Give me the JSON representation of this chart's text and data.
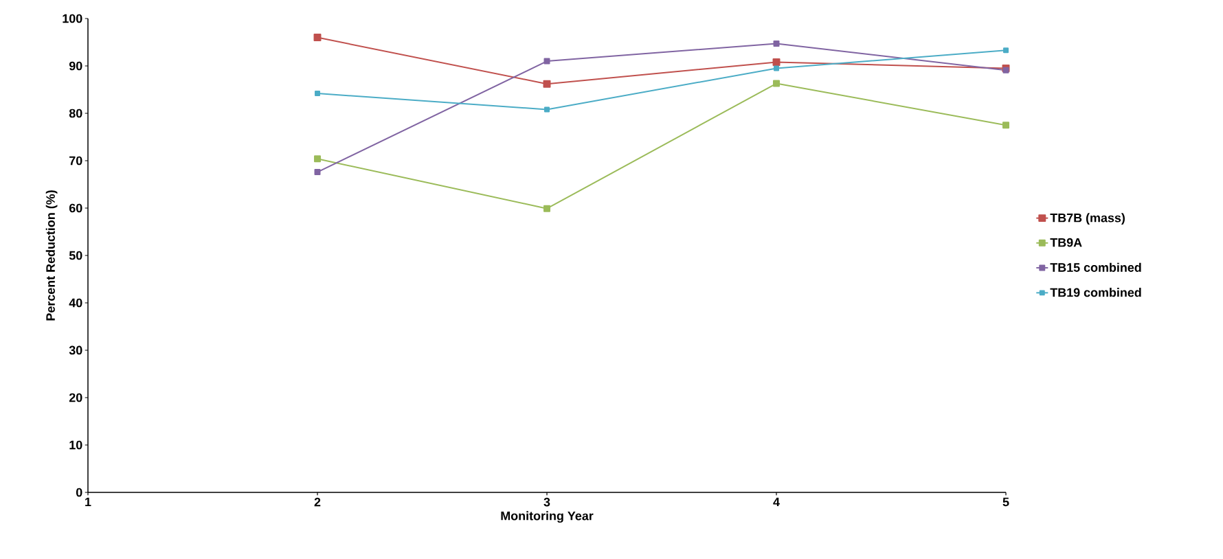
{
  "chart_data": {
    "type": "line",
    "xlabel": "Monitoring Year",
    "ylabel": "Percent Reduction (%)",
    "x": [
      2,
      3,
      4,
      5
    ],
    "series": [
      {
        "name": "TB7B (mass)",
        "color": "#c0504d",
        "values": [
          96,
          86.2,
          90.8,
          89.5
        ]
      },
      {
        "name": "TB9A",
        "color": "#9bbb59",
        "values": [
          70.4,
          59.9,
          86.3,
          77.5
        ]
      },
      {
        "name": "TB15 combined",
        "color": "#8064a2",
        "values": [
          67.6,
          91,
          94.7,
          89.1
        ]
      },
      {
        "name": "TB19 combined",
        "color": "#4bacc6",
        "values": [
          84.2,
          80.8,
          89.5,
          93.3
        ]
      }
    ],
    "xlim": [
      1,
      5
    ],
    "ylim": [
      0,
      100
    ],
    "xticks": [
      1,
      2,
      3,
      4,
      5
    ],
    "yticks": [
      0,
      10,
      20,
      30,
      40,
      50,
      60,
      70,
      80,
      90,
      100
    ],
    "grid": false,
    "legend": "right",
    "marker": "square",
    "line_style": "solid"
  }
}
